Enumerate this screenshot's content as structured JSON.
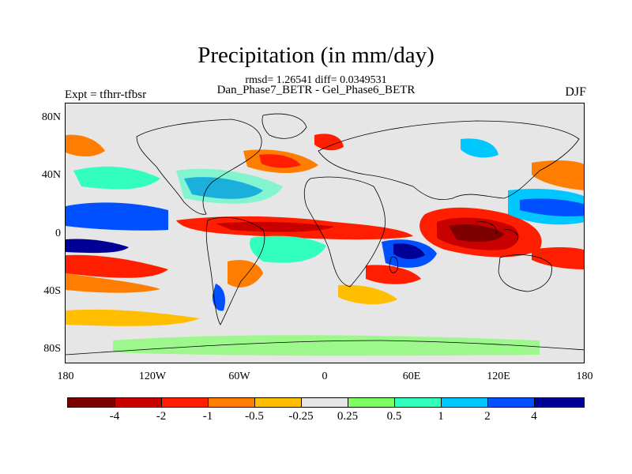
{
  "title": "Precipitation (in mm/day)",
  "stats": "rmsd= 1.26541 diff= 0.0349531",
  "subtitle": "Dan_Phase7_BETR - Gel_Phase6_BETR",
  "expt": "Expt = tfhrr-tfbsr",
  "season": "DJF",
  "map": {
    "background_color": "#e6e6e6",
    "lat_ticks": [
      "80N",
      "40N",
      "0",
      "40S",
      "80S"
    ],
    "lon_ticks": [
      "180",
      "120W",
      "60W",
      "0",
      "60E",
      "120E",
      "180"
    ]
  },
  "colorbar": {
    "colors": [
      "#7d0000",
      "#c80000",
      "#ff1e00",
      "#ff7d00",
      "#ffbe00",
      "#e6e6e6",
      "#7dff64",
      "#32ffbe",
      "#00c8ff",
      "#0050ff",
      "#000096"
    ],
    "labels": [
      "-4",
      "-2",
      "-1",
      "-0.5",
      "-0.25",
      "0.25",
      "0.5",
      "1",
      "2",
      "4"
    ]
  }
}
